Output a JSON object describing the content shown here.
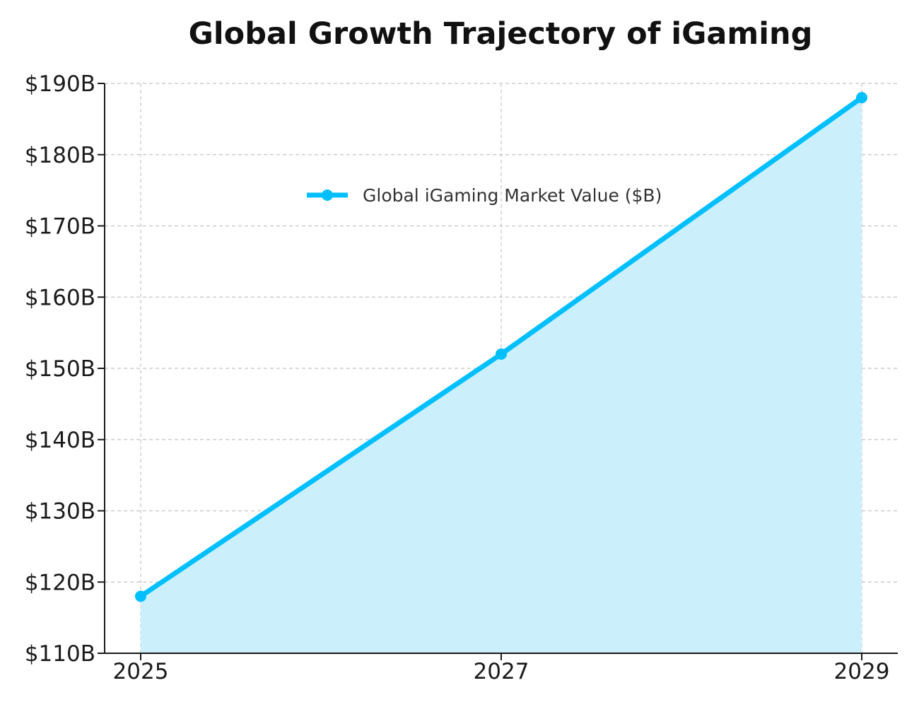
{
  "chart_data": {
    "type": "area",
    "title": "Global Growth Trajectory of iGaming",
    "xlabel": "",
    "ylabel": "",
    "x": [
      2025,
      2027,
      2029
    ],
    "x_tick_labels": [
      "2025",
      "2027",
      "2029"
    ],
    "series": [
      {
        "name": "Global iGaming Market Value ($B)",
        "values": [
          118,
          152,
          188
        ],
        "color": "#00bfff",
        "fill_color": "#cbf0fc"
      }
    ],
    "xlim": [
      2024.8,
      2029.2
    ],
    "ylim": [
      110,
      190
    ],
    "y_ticks": [
      110,
      120,
      130,
      140,
      150,
      160,
      170,
      180,
      190
    ],
    "y_tick_labels": [
      "$110B",
      "$120B",
      "$130B",
      "$140B",
      "$150B",
      "$160B",
      "$170B",
      "$180B",
      "$190B"
    ],
    "grid": true,
    "legend_position": "upper-center"
  }
}
